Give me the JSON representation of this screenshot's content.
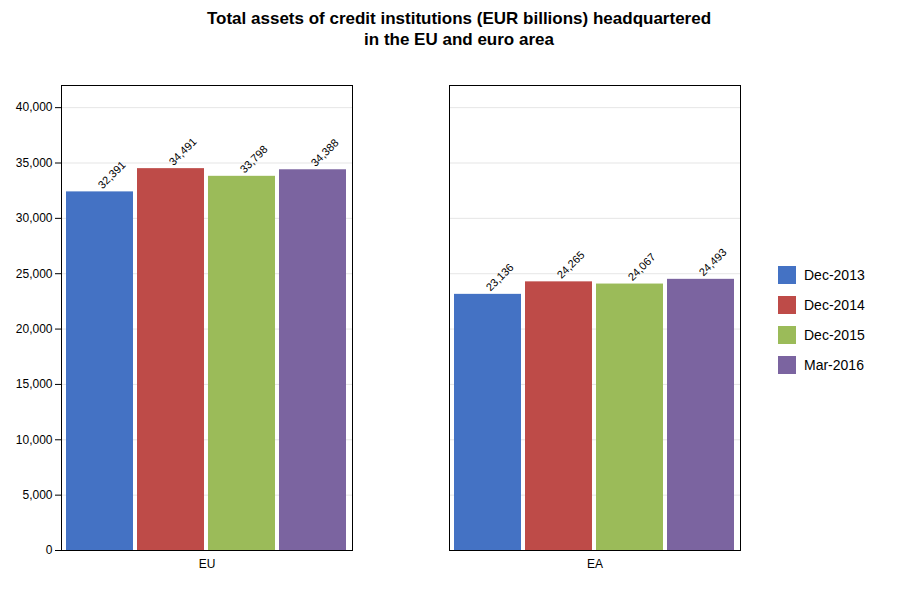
{
  "chart_data": {
    "type": "bar",
    "title": "Total assets of credit institutions (EUR billions) headquartered\nin the EU and euro area",
    "categories": [
      "EU",
      "EA"
    ],
    "series": [
      {
        "name": "Dec-2013",
        "color": "#4472C4",
        "values": [
          32391,
          23136
        ],
        "value_labels": [
          "32,391",
          "23,136"
        ]
      },
      {
        "name": "Dec-2014",
        "color": "#BE4B48",
        "values": [
          34491,
          24265
        ],
        "value_labels": [
          "34,491",
          "24,265"
        ]
      },
      {
        "name": "Dec-2015",
        "color": "#9BBB59",
        "values": [
          33798,
          24067
        ],
        "value_labels": [
          "33,798",
          "24,067"
        ]
      },
      {
        "name": "Mar-2016",
        "color": "#7B64A0",
        "values": [
          34388,
          24493
        ],
        "value_labels": [
          "34,388",
          "24,493"
        ]
      }
    ],
    "ylim": [
      0,
      42000
    ],
    "yticks": [
      0,
      {
        "value": 5000,
        "label": "5,000"
      },
      {
        "value": 10000,
        "label": "10,000"
      },
      {
        "value": 15000,
        "label": "15,000"
      },
      {
        "value": 20000,
        "label": "20,000"
      },
      {
        "value": 25000,
        "label": "25,000"
      },
      {
        "value": 30000,
        "label": "30,000"
      },
      {
        "value": 35000,
        "label": "35,000"
      },
      {
        "value": 40000,
        "label": "40,000"
      }
    ],
    "grid": true,
    "legend": "right",
    "data_labels": true
  }
}
